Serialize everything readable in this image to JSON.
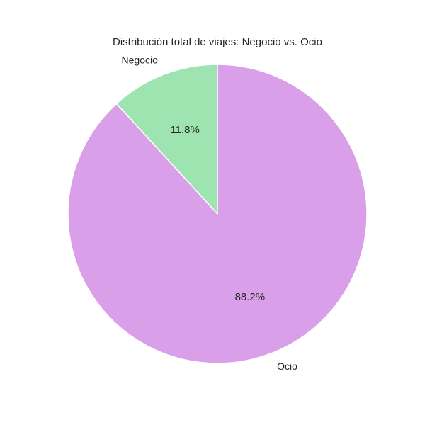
{
  "chart_data": {
    "type": "pie",
    "title": "Distribución total de viajes: Negocio vs. Ocio",
    "start_angle_deg": 90,
    "direction": "counterclockwise",
    "slices": [
      {
        "label": "Negocio",
        "value": 11.8,
        "pct_label": "11.8%",
        "color": "#9de4b0"
      },
      {
        "label": "Ocio",
        "value": 88.2,
        "pct_label": "88.2%",
        "color": "#d99fe8"
      }
    ],
    "edge_color": "#ffffff"
  }
}
